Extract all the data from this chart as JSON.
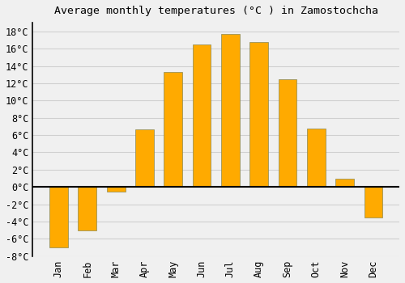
{
  "title": "Average monthly temperatures (°C ) in Zamostochcha",
  "months": [
    "Jan",
    "Feb",
    "Mar",
    "Apr",
    "May",
    "Jun",
    "Jul",
    "Aug",
    "Sep",
    "Oct",
    "Nov",
    "Dec"
  ],
  "values": [
    -7.0,
    -5.0,
    -0.5,
    6.7,
    13.3,
    16.5,
    17.7,
    16.8,
    12.5,
    6.8,
    1.0,
    -3.5
  ],
  "bar_color": "#FFAA00",
  "bar_edge_color": "#888855",
  "background_color": "#f0f0f0",
  "grid_color": "#d0d0d0",
  "ylim": [
    -8,
    19
  ],
  "yticks": [
    -8,
    -6,
    -4,
    -2,
    0,
    2,
    4,
    6,
    8,
    10,
    12,
    14,
    16,
    18
  ],
  "title_fontsize": 9.5,
  "tick_fontsize": 8.5
}
